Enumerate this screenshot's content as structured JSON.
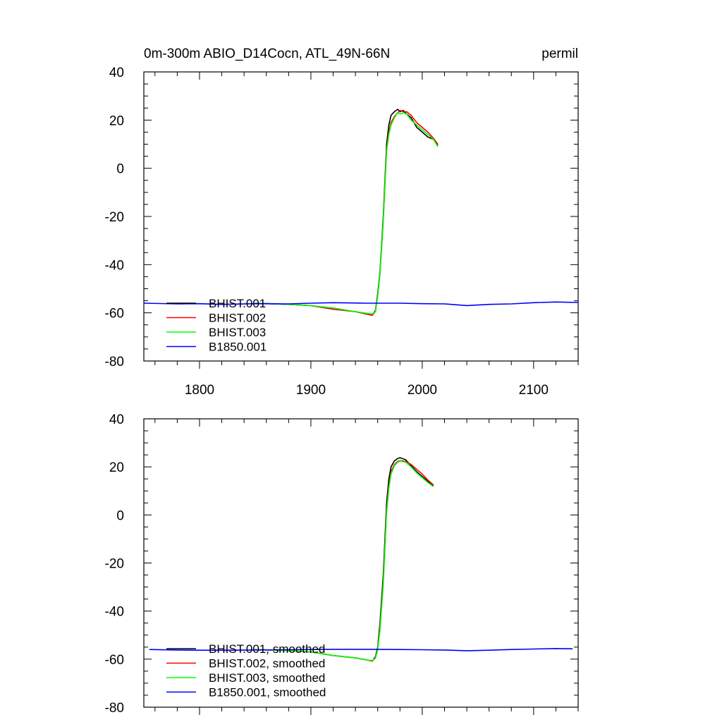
{
  "figure": {
    "title_left": "0m-300m ABIO_D14Cocn, ATL_49N-66N",
    "title_right": "permil"
  },
  "chart_data": [
    {
      "type": "line",
      "title": "0m-300m ABIO_D14Cocn, ATL_49N-66N",
      "units": "permil",
      "xlim": [
        1750,
        2140
      ],
      "ylim": [
        -80,
        40
      ],
      "x_ticks": [
        1800,
        1900,
        2000,
        2100
      ],
      "y_ticks": [
        -80,
        -60,
        -40,
        -20,
        0,
        20,
        40
      ],
      "show_x_tick_labels": true,
      "grid": false,
      "legend_position": "bottom-left",
      "series": [
        {
          "name": "BHIST.001",
          "color": "#000000",
          "x": [
            1850,
            1880,
            1900,
            1920,
            1940,
            1955,
            1958,
            1960,
            1962,
            1965,
            1968,
            1970,
            1972,
            1975,
            1978,
            1980,
            1983,
            1986,
            1990,
            1995,
            2000,
            2005,
            2010,
            2014
          ],
          "y": [
            -56,
            -56.5,
            -57,
            -58.5,
            -59.5,
            -61,
            -59,
            -52,
            -43,
            -20,
            10,
            18,
            22,
            23.5,
            24.5,
            23.5,
            24,
            22.5,
            21,
            17,
            15,
            13,
            12,
            9.5
          ]
        },
        {
          "name": "BHIST.002",
          "color": "#ff0000",
          "x": [
            1850,
            1880,
            1900,
            1920,
            1940,
            1955,
            1958,
            1960,
            1962,
            1965,
            1968,
            1970,
            1972,
            1975,
            1978,
            1980,
            1983,
            1986,
            1990,
            1995,
            2000,
            2005,
            2010,
            2014
          ],
          "y": [
            -56,
            -56.5,
            -57,
            -58.5,
            -59.5,
            -61,
            -59.5,
            -53,
            -44,
            -22,
            8,
            15,
            19,
            21.5,
            23,
            24,
            23.5,
            23.5,
            22,
            19,
            17,
            15,
            12.5,
            10
          ]
        },
        {
          "name": "BHIST.003",
          "color": "#00ff00",
          "x": [
            1850,
            1880,
            1900,
            1920,
            1940,
            1955,
            1958,
            1960,
            1962,
            1965,
            1968,
            1970,
            1972,
            1975,
            1978,
            1980,
            1983,
            1986,
            1990,
            1995,
            2000,
            2005,
            2010,
            2014
          ],
          "y": [
            -56,
            -56.5,
            -57,
            -58,
            -59.5,
            -60.5,
            -59.5,
            -53,
            -44,
            -22,
            7,
            14,
            18,
            21,
            23,
            22.5,
            23,
            22.5,
            20,
            18,
            16,
            14,
            12,
            9
          ]
        },
        {
          "name": "B1850.001",
          "color": "#0000ff",
          "x": [
            1750,
            1780,
            1800,
            1820,
            1850,
            1880,
            1900,
            1920,
            1950,
            1980,
            2000,
            2020,
            2040,
            2060,
            2080,
            2100,
            2120,
            2140
          ],
          "y": [
            -56,
            -56.3,
            -56.2,
            -56.5,
            -56.2,
            -56.3,
            -56,
            -55.8,
            -56,
            -56,
            -56.2,
            -56.3,
            -57,
            -56.5,
            -56.3,
            -55.8,
            -55.5,
            -55.7
          ]
        }
      ]
    },
    {
      "type": "line",
      "xlim": [
        1750,
        2140
      ],
      "ylim": [
        -80,
        40
      ],
      "x_ticks": [
        1800,
        1900,
        2000,
        2100
      ],
      "y_ticks": [
        -80,
        -60,
        -40,
        -20,
        0,
        20,
        40
      ],
      "show_x_tick_labels": false,
      "grid": false,
      "legend_position": "bottom-left",
      "series": [
        {
          "name": "BHIST.001, smoothed",
          "color": "#000000",
          "x": [
            1850,
            1880,
            1900,
            1920,
            1940,
            1950,
            1955,
            1958,
            1960,
            1962,
            1965,
            1968,
            1970,
            1972,
            1975,
            1978,
            1980,
            1985,
            1990,
            1995,
            2000,
            2005,
            2010
          ],
          "y": [
            -56,
            -56.5,
            -57,
            -58.5,
            -59.5,
            -60.3,
            -60.8,
            -59,
            -55,
            -45,
            -25,
            5,
            15,
            20,
            22.5,
            23.5,
            23.8,
            23,
            20.5,
            18,
            16,
            14,
            12
          ]
        },
        {
          "name": "BHIST.002, smoothed",
          "color": "#ff0000",
          "x": [
            1850,
            1880,
            1900,
            1920,
            1940,
            1950,
            1955,
            1958,
            1960,
            1962,
            1965,
            1968,
            1970,
            1972,
            1975,
            1978,
            1980,
            1985,
            1990,
            1995,
            2000,
            2005,
            2010
          ],
          "y": [
            -56,
            -56.5,
            -57,
            -58.5,
            -59.5,
            -60.3,
            -60.8,
            -59.5,
            -56,
            -47,
            -28,
            2,
            12,
            18,
            21,
            22.3,
            22.6,
            22.3,
            21,
            19,
            17,
            14.5,
            12.5
          ]
        },
        {
          "name": "BHIST.003, smoothed",
          "color": "#00ff00",
          "x": [
            1850,
            1880,
            1900,
            1920,
            1940,
            1950,
            1955,
            1958,
            1960,
            1962,
            1965,
            1968,
            1970,
            1972,
            1975,
            1978,
            1980,
            1985,
            1990,
            1995,
            2000,
            2005,
            2010
          ],
          "y": [
            -56,
            -56.5,
            -57,
            -58.5,
            -59.5,
            -60.3,
            -60.6,
            -59.5,
            -56,
            -48,
            -29,
            1,
            11,
            17,
            20.5,
            22,
            22.4,
            22,
            20,
            17.5,
            15.5,
            13.5,
            11.8
          ]
        },
        {
          "name": "B1850.001, smoothed",
          "color": "#0000ff",
          "x": [
            1755,
            1780,
            1800,
            1820,
            1850,
            1880,
            1900,
            1920,
            1950,
            1980,
            2000,
            2020,
            2040,
            2060,
            2080,
            2100,
            2120,
            2135
          ],
          "y": [
            -56,
            -56.2,
            -56.3,
            -56.3,
            -56.2,
            -56.1,
            -56,
            -55.9,
            -55.9,
            -56,
            -56.1,
            -56.2,
            -56.5,
            -56.3,
            -56,
            -55.8,
            -55.6,
            -55.7
          ]
        }
      ]
    }
  ]
}
